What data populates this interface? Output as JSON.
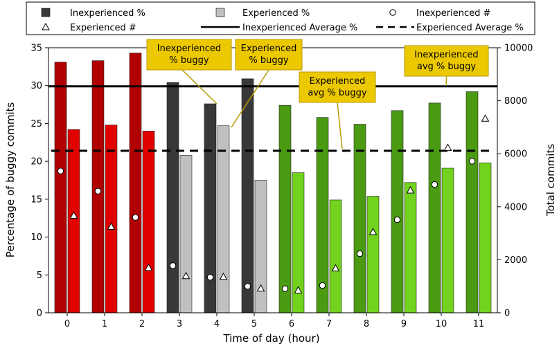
{
  "chart_data": {
    "type": "bar",
    "xlabel": "Time of day (hour)",
    "ylabel": "Percentage of buggy commits",
    "y2label": "Total commits",
    "categories": [
      "0",
      "1",
      "2",
      "3",
      "4",
      "5",
      "6",
      "7",
      "8",
      "9",
      "10",
      "11"
    ],
    "ylim": [
      0,
      35
    ],
    "y2lim": [
      0,
      10000
    ],
    "yticks": [
      "0",
      "5",
      "10",
      "15",
      "20",
      "25",
      "30",
      "35"
    ],
    "y2ticks": [
      "0",
      "2000",
      "4000",
      "6000",
      "8000",
      "10000"
    ],
    "series": [
      {
        "name": "Inexperienced %",
        "axis": "left",
        "kind": "bar",
        "values": [
          33.1,
          33.3,
          34.3,
          30.4,
          27.6,
          30.9,
          27.4,
          25.8,
          24.9,
          26.7,
          27.7,
          29.2
        ]
      },
      {
        "name": "Experienced %",
        "axis": "left",
        "kind": "bar",
        "values": [
          24.2,
          24.8,
          24.0,
          20.8,
          24.7,
          17.5,
          18.5,
          14.9,
          15.4,
          17.2,
          19.1,
          19.8
        ]
      },
      {
        "name": "Inexperienced #",
        "axis": "right",
        "kind": "marker",
        "values": [
          5350,
          4590,
          3600,
          1780,
          1340,
          1000,
          910,
          1030,
          2230,
          3510,
          4840,
          5720
        ]
      },
      {
        "name": "Experienced #",
        "axis": "right",
        "kind": "marker",
        "values": [
          3670,
          3250,
          1700,
          1390,
          1360,
          920,
          850,
          1680,
          3050,
          4620,
          6230,
          7330
        ]
      },
      {
        "name": "Inexperienced Average %",
        "axis": "left",
        "kind": "hline",
        "value": 29.9
      },
      {
        "name": "Experienced Average %",
        "axis": "left",
        "kind": "hline",
        "value": 21.4
      }
    ],
    "colors": {
      "inexp_red": "#b00000",
      "exp_red": "#e00000",
      "inexp_gray": "#383838",
      "exp_gray": "#c0c0c0",
      "inexp_green": "#4a9a12",
      "exp_green": "#72d21e",
      "legend_inexp": "#383838",
      "legend_exp": "#c0c0c0",
      "annotation_fill": "#ecc800",
      "annotation_line": "#b89a00"
    },
    "annotations": [
      {
        "text": [
          "Inexperienced",
          "% buggy"
        ]
      },
      {
        "text": [
          "Experienced",
          "% buggy"
        ]
      },
      {
        "text": [
          "Experienced",
          "avg % buggy"
        ]
      },
      {
        "text": [
          "Inexperienced",
          "avg % buggy"
        ]
      }
    ],
    "legend_position": "top"
  }
}
